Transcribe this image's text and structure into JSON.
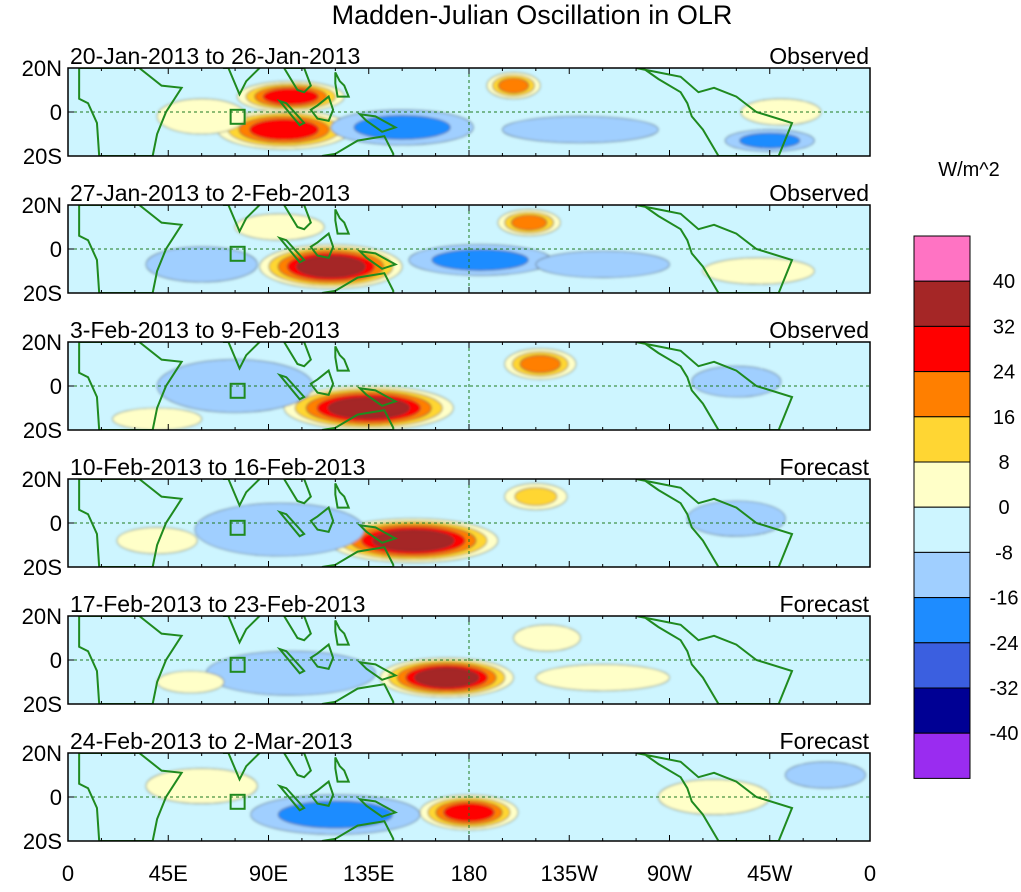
{
  "chart_data": {
    "type": "heatmap",
    "title": "Madden-Julian Oscillation in OLR",
    "units": "W/m^2",
    "x_ticks": [
      "0",
      "45E",
      "90E",
      "135E",
      "180",
      "135W",
      "90W",
      "45W",
      "0"
    ],
    "y_ticks": [
      "20N",
      "0",
      "20S"
    ],
    "xlim_deg_east": [
      0,
      360
    ],
    "ylim_lat": [
      -20,
      20
    ],
    "colorbar": {
      "levels": [
        40,
        32,
        24,
        16,
        8,
        0,
        -8,
        -16,
        -24,
        -32,
        -40
      ],
      "colors": [
        "#ff73c3",
        "#a52626",
        "#ff0000",
        "#ff7f00",
        "#ffd633",
        "#ffffc8",
        "#cdf5ff",
        "#a0cfff",
        "#1e8cff",
        "#3b5fe0",
        "#000094",
        "#9a2cf0"
      ]
    },
    "panels": [
      {
        "period": "20-Jan-2013 to 26-Jan-2013",
        "status": "Observed",
        "anomalies": [
          {
            "lon": 97,
            "lat": -8,
            "rlon": 30,
            "rlat": 9,
            "value": 28
          },
          {
            "lon": 100,
            "lat": 7,
            "rlon": 24,
            "rlat": 7,
            "value": 26
          },
          {
            "lon": 60,
            "lat": -2,
            "rlon": 20,
            "rlat": 8,
            "value": 6
          },
          {
            "lon": 200,
            "lat": 12,
            "rlon": 12,
            "rlat": 6,
            "value": 18
          },
          {
            "lon": 150,
            "lat": -7,
            "rlon": 32,
            "rlat": 8,
            "value": -24
          },
          {
            "lon": 230,
            "lat": -8,
            "rlon": 35,
            "rlat": 6,
            "value": -14
          },
          {
            "lon": 315,
            "lat": -13,
            "rlon": 20,
            "rlat": 5,
            "value": -18
          },
          {
            "lon": 320,
            "lat": 0,
            "rlon": 18,
            "rlat": 6,
            "value": 8
          },
          {
            "lon": 25,
            "lat": 2,
            "rlon": 15,
            "rlat": 8,
            "value": -6
          },
          {
            "lon": 270,
            "lat": 8,
            "rlon": 40,
            "rlat": 8,
            "value": -5
          }
        ]
      },
      {
        "period": "27-Jan-2013 to 2-Feb-2013",
        "status": "Observed",
        "anomalies": [
          {
            "lon": 118,
            "lat": -8,
            "rlon": 32,
            "rlat": 10,
            "value": 34
          },
          {
            "lon": 207,
            "lat": 12,
            "rlon": 14,
            "rlat": 6,
            "value": 18
          },
          {
            "lon": 95,
            "lat": 10,
            "rlon": 20,
            "rlat": 6,
            "value": 8
          },
          {
            "lon": 185,
            "lat": -5,
            "rlon": 32,
            "rlat": 7,
            "value": -18
          },
          {
            "lon": 240,
            "lat": -7,
            "rlon": 30,
            "rlat": 6,
            "value": -14
          },
          {
            "lon": 60,
            "lat": -7,
            "rlon": 25,
            "rlat": 8,
            "value": -14
          },
          {
            "lon": 30,
            "lat": 5,
            "rlon": 15,
            "rlat": 8,
            "value": -6
          },
          {
            "lon": 300,
            "lat": 10,
            "rlon": 20,
            "rlat": 6,
            "value": -6
          },
          {
            "lon": 310,
            "lat": -10,
            "rlon": 25,
            "rlat": 6,
            "value": 6
          }
        ]
      },
      {
        "period": "3-Feb-2013 to 9-Feb-2013",
        "status": "Observed",
        "anomalies": [
          {
            "lon": 135,
            "lat": -10,
            "rlon": 38,
            "rlat": 10,
            "value": 36
          },
          {
            "lon": 212,
            "lat": 10,
            "rlon": 16,
            "rlat": 7,
            "value": 18
          },
          {
            "lon": 75,
            "lat": 0,
            "rlon": 35,
            "rlat": 12,
            "value": -12
          },
          {
            "lon": 160,
            "lat": 12,
            "rlon": 25,
            "rlat": 6,
            "value": -6
          },
          {
            "lon": 300,
            "lat": 2,
            "rlon": 20,
            "rlat": 7,
            "value": -14
          },
          {
            "lon": 40,
            "lat": -15,
            "rlon": 20,
            "rlat": 5,
            "value": 8
          },
          {
            "lon": 260,
            "lat": -8,
            "rlon": 40,
            "rlat": 6,
            "value": -6
          }
        ]
      },
      {
        "period": "10-Feb-2013 to 16-Feb-2013",
        "status": "Forecast",
        "anomalies": [
          {
            "lon": 155,
            "lat": -8,
            "rlon": 38,
            "rlat": 10,
            "value": 34
          },
          {
            "lon": 210,
            "lat": 12,
            "rlon": 14,
            "rlat": 6,
            "value": 16
          },
          {
            "lon": 95,
            "lat": -3,
            "rlon": 38,
            "rlat": 12,
            "value": -14
          },
          {
            "lon": 300,
            "lat": 2,
            "rlon": 22,
            "rlat": 8,
            "value": -14
          },
          {
            "lon": 40,
            "lat": -8,
            "rlon": 18,
            "rlat": 6,
            "value": 8
          },
          {
            "lon": 250,
            "lat": 6,
            "rlon": 30,
            "rlat": 6,
            "value": -6
          }
        ]
      },
      {
        "period": "17-Feb-2013 to 23-Feb-2013",
        "status": "Forecast",
        "anomalies": [
          {
            "lon": 170,
            "lat": -8,
            "rlon": 30,
            "rlat": 9,
            "value": 36
          },
          {
            "lon": 100,
            "lat": -6,
            "rlon": 38,
            "rlat": 10,
            "value": -16
          },
          {
            "lon": 215,
            "lat": 10,
            "rlon": 15,
            "rlat": 6,
            "value": 8
          },
          {
            "lon": 300,
            "lat": 3,
            "rlon": 20,
            "rlat": 7,
            "value": -8
          },
          {
            "lon": 55,
            "lat": -10,
            "rlon": 15,
            "rlat": 5,
            "value": 8
          },
          {
            "lon": 240,
            "lat": -8,
            "rlon": 30,
            "rlat": 6,
            "value": 6
          }
        ]
      },
      {
        "period": "24-Feb-2013 to 2-Mar-2013",
        "status": "Forecast",
        "anomalies": [
          {
            "lon": 180,
            "lat": -7,
            "rlon": 22,
            "rlat": 8,
            "value": 28
          },
          {
            "lon": 120,
            "lat": -8,
            "rlon": 38,
            "rlat": 9,
            "value": -18
          },
          {
            "lon": 200,
            "lat": 10,
            "rlon": 30,
            "rlat": 7,
            "value": -6
          },
          {
            "lon": 290,
            "lat": 0,
            "rlon": 25,
            "rlat": 8,
            "value": 8
          },
          {
            "lon": 340,
            "lat": 10,
            "rlon": 18,
            "rlat": 6,
            "value": -10
          },
          {
            "lon": 60,
            "lat": 5,
            "rlon": 25,
            "rlat": 8,
            "value": 5
          }
        ]
      }
    ]
  }
}
